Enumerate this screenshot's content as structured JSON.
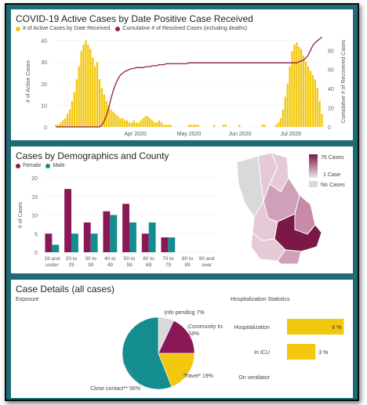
{
  "colors": {
    "active": "#f2c80f",
    "resolved": "#8e1f57",
    "female": "#8a1757",
    "male": "#138d90",
    "teal_frame": "#1f6b75",
    "map_dark": "#7a1848",
    "map_mid": "#c78aa8",
    "map_light": "#e5c9d6",
    "map_none": "#d9d9d9"
  },
  "panel1": {
    "title": "COVID-19 Active Cases by Date Positive Case Received",
    "legend_active": "# of Active Cases by Date Received",
    "legend_resolved": "Cumulative # of Resolved Cases (including deaths)"
  },
  "panel2": {
    "title": "Cases by Demographics and County",
    "legend_female": "Female",
    "legend_male": "Male",
    "map_legend_max": "76 Cases",
    "map_legend_min": "1 Case",
    "map_legend_none": "No Cases"
  },
  "panel3": {
    "title": "Case Details (all cases)",
    "exposure_label": "Exposure",
    "hosp_title": "Hospitalization Statistics"
  },
  "chart_data": [
    {
      "type": "bar",
      "title": "COVID-19 Active Cases by Date Positive Case Received",
      "ylabel": "# of Active Cases",
      "y2label": "Cumulative # of Recovered Cases",
      "xticks": [
        "Apr 2020",
        "May 2020",
        "Jun 2020",
        "Jul 2020"
      ],
      "yticks": [
        0,
        10,
        20,
        30,
        40
      ],
      "y2ticks": [
        0,
        20,
        40,
        60,
        80
      ],
      "ylim": [
        0,
        42
      ],
      "y2lim": [
        0,
        95
      ],
      "series": [
        {
          "name": "# of Active Cases by Date Received",
          "values": [
            1,
            1,
            2,
            3,
            4,
            6,
            8,
            12,
            16,
            22,
            28,
            35,
            38,
            40,
            38,
            36,
            32,
            28,
            30,
            22,
            18,
            15,
            12,
            10,
            8,
            7,
            6,
            5,
            4,
            4,
            3,
            3,
            2,
            2,
            3,
            2,
            2,
            3,
            4,
            5,
            5,
            4,
            3,
            2,
            2,
            3,
            2,
            1,
            1,
            1,
            1,
            0,
            0,
            0,
            0,
            0,
            0,
            0,
            1,
            1,
            1,
            1,
            1,
            0,
            0,
            0,
            0,
            0,
            0,
            1,
            0,
            0,
            0,
            1,
            1,
            0,
            0,
            0,
            0,
            0,
            1,
            0,
            0,
            0,
            0,
            0,
            0,
            0,
            0,
            0,
            1,
            1,
            0,
            0,
            0,
            0,
            1,
            2,
            4,
            8,
            14,
            20,
            28,
            35,
            38,
            39,
            37,
            36,
            33,
            30,
            28,
            26,
            24,
            22,
            18,
            12,
            6
          ]
        },
        {
          "name": "Cumulative # of Resolved Cases (including deaths)",
          "type": "line",
          "values": [
            0,
            0,
            0,
            0,
            0,
            0,
            0,
            0,
            0,
            0,
            0,
            0,
            0,
            0,
            0,
            0,
            0,
            0,
            0,
            0,
            2,
            6,
            12,
            20,
            30,
            38,
            45,
            50,
            54,
            56,
            58,
            59,
            60,
            61,
            61,
            62,
            62,
            62,
            62,
            63,
            63,
            63,
            64,
            64,
            64,
            65,
            65,
            65,
            66,
            66,
            66,
            66,
            66,
            66,
            66,
            66,
            66,
            66,
            67,
            67,
            67,
            67,
            67,
            67,
            67,
            67,
            67,
            67,
            67,
            67,
            67,
            67,
            67,
            67,
            67,
            67,
            67,
            67,
            67,
            67,
            67,
            67,
            67,
            67,
            67,
            67,
            67,
            67,
            67,
            67,
            67,
            67,
            67,
            67,
            67,
            67,
            67,
            67,
            67,
            67,
            67,
            67,
            67,
            67,
            67,
            67,
            68,
            69,
            70,
            72,
            75,
            80,
            85,
            88,
            90,
            92,
            94
          ]
        }
      ]
    },
    {
      "type": "bar",
      "title": "Cases by Demographics and County",
      "ylabel": "# of Cases",
      "categories": [
        "19 and under",
        "20 to 29",
        "30 to 39",
        "40 to 49",
        "50 to 59",
        "60 to 69",
        "70 to 79",
        "80 to 89",
        "90 and over"
      ],
      "yticks": [
        0,
        5,
        10,
        15,
        20
      ],
      "ylim": [
        0,
        20
      ],
      "series": [
        {
          "name": "Female",
          "values": [
            5,
            17,
            8,
            11,
            13,
            5,
            4,
            0,
            0
          ]
        },
        {
          "name": "Male",
          "values": [
            2,
            5,
            5,
            10,
            8,
            8,
            4,
            0,
            0
          ]
        }
      ]
    },
    {
      "type": "pie",
      "slices": [
        {
          "label": "Info pending 7%",
          "value": 7,
          "color": "#d9d9d9"
        },
        {
          "label": "Community transmission 18%",
          "value": 18,
          "color": "#8a1757"
        },
        {
          "label": "Travel* 19%",
          "value": 19,
          "color": "#f2c80f"
        },
        {
          "label": "Close contact** 56%",
          "value": 56,
          "color": "#138d90"
        }
      ]
    },
    {
      "type": "bar",
      "title": "Hospitalization Statistics",
      "categories": [
        "Hospitalization",
        "In ICU",
        "On ventilator"
      ],
      "values": [
        6,
        3,
        0
      ],
      "value_labels": [
        "6 %",
        "3 %",
        ""
      ]
    }
  ]
}
